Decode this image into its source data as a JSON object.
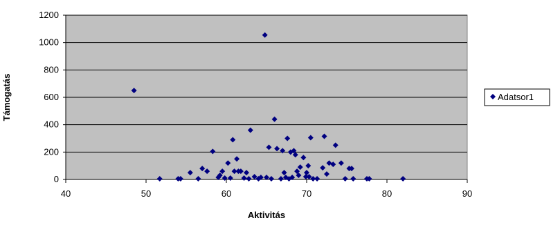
{
  "chart_data": {
    "type": "scatter",
    "xlabel": "Aktivitás",
    "ylabel": "Támogatás",
    "xlim": [
      40,
      90
    ],
    "ylim": [
      0,
      1200
    ],
    "x_ticks": [
      40,
      50,
      60,
      70,
      80,
      90
    ],
    "y_ticks": [
      0,
      200,
      400,
      600,
      800,
      1000,
      1200
    ],
    "grid": "horizontal major gridlines",
    "plot_background": "#C0C0C0",
    "legend_position": "right",
    "series": [
      {
        "name": "Adatsor1",
        "color": "#000080",
        "marker": "diamond",
        "points": [
          [
            48.5,
            650
          ],
          [
            51.7,
            5
          ],
          [
            54,
            5
          ],
          [
            54.3,
            5
          ],
          [
            55.5,
            50
          ],
          [
            56.5,
            5
          ],
          [
            57,
            80
          ],
          [
            57.6,
            60
          ],
          [
            58.3,
            205
          ],
          [
            59,
            15
          ],
          [
            59.2,
            30
          ],
          [
            59.5,
            60
          ],
          [
            59.8,
            10
          ],
          [
            60.2,
            120
          ],
          [
            60.5,
            10
          ],
          [
            60.8,
            290
          ],
          [
            61,
            60
          ],
          [
            61.3,
            150
          ],
          [
            61.5,
            60
          ],
          [
            61.8,
            60
          ],
          [
            62.2,
            10
          ],
          [
            62.5,
            50
          ],
          [
            62.8,
            5
          ],
          [
            63,
            360
          ],
          [
            63.5,
            20
          ],
          [
            64,
            5
          ],
          [
            64.3,
            15
          ],
          [
            64.8,
            1055
          ],
          [
            65,
            15
          ],
          [
            65.3,
            235
          ],
          [
            65.6,
            5
          ],
          [
            66,
            440
          ],
          [
            66.3,
            225
          ],
          [
            66.8,
            5
          ],
          [
            67,
            210
          ],
          [
            67.2,
            50
          ],
          [
            67.4,
            15
          ],
          [
            67.6,
            300
          ],
          [
            67.8,
            5
          ],
          [
            68,
            200
          ],
          [
            68.2,
            15
          ],
          [
            68.4,
            210
          ],
          [
            68.6,
            180
          ],
          [
            68.8,
            60
          ],
          [
            69,
            30
          ],
          [
            69.2,
            90
          ],
          [
            69.6,
            160
          ],
          [
            69.9,
            20
          ],
          [
            70,
            50
          ],
          [
            70.2,
            100
          ],
          [
            70.3,
            20
          ],
          [
            70.5,
            305
          ],
          [
            70.8,
            5
          ],
          [
            71.3,
            5
          ],
          [
            72,
            85
          ],
          [
            72.2,
            315
          ],
          [
            72.5,
            40
          ],
          [
            72.8,
            120
          ],
          [
            73.3,
            110
          ],
          [
            73.6,
            250
          ],
          [
            74.3,
            120
          ],
          [
            74.8,
            5
          ],
          [
            75.3,
            80
          ],
          [
            75.6,
            80
          ],
          [
            75.8,
            5
          ],
          [
            77.5,
            5
          ],
          [
            77.8,
            5
          ],
          [
            82,
            5
          ]
        ]
      }
    ]
  }
}
